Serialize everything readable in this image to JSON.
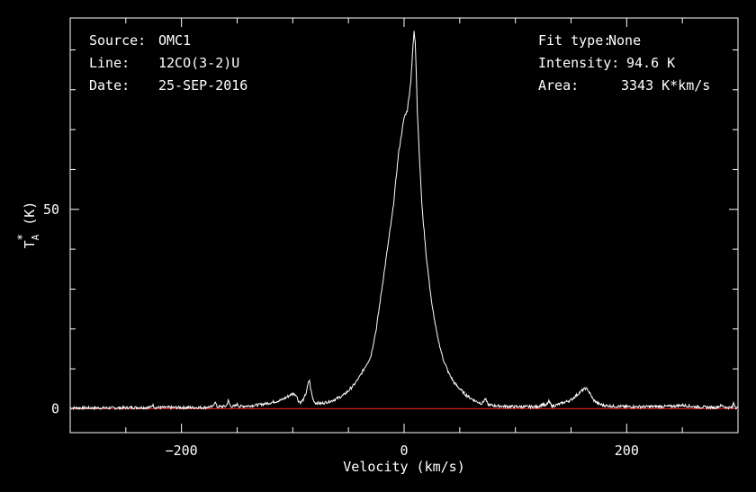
{
  "info": {
    "left": [
      {
        "key": "Source:",
        "value": "OMC1"
      },
      {
        "key": "Line:",
        "value": "12CO(3-2)U"
      },
      {
        "key": "Date:",
        "value": "25-SEP-2016"
      }
    ],
    "right": [
      {
        "key": "Fit type:",
        "value": "None"
      },
      {
        "key": "Intensity:",
        "value": "94.6 K"
      },
      {
        "key": "Area:",
        "value": "3343 K*km/s"
      }
    ]
  },
  "colors": {
    "background": "#000000",
    "axes": "#ffffff",
    "spectrum": "#ffffff",
    "baseline": "#cc2222"
  },
  "chart_data": {
    "type": "line",
    "title": "",
    "xlabel": "Velocity (km/s)",
    "ylabel": "T_A^* (K)",
    "ylabel_parts": {
      "main": "T",
      "sub": "A",
      "sup": "*",
      "unit": " (K)"
    },
    "xlim": [
      -300,
      300
    ],
    "ylim": [
      -6,
      98
    ],
    "xticks": [
      -200,
      0,
      200
    ],
    "yticks": [
      0,
      50
    ],
    "xtick_labels": [
      "−200",
      "0",
      "200"
    ],
    "ytick_labels": [
      "0",
      "50"
    ],
    "grid": false,
    "legend": "none",
    "series": [
      {
        "type": "spectrum",
        "x": [
          -300,
          -260,
          -240,
          -228,
          -226,
          -224,
          -200,
          -180,
          -172,
          -170,
          -168,
          -160,
          -158,
          -156,
          -152,
          -150,
          -148,
          -140,
          -130,
          -120,
          -110,
          -105,
          -100,
          -97,
          -95,
          -93,
          -90,
          -88,
          -86,
          -85,
          -84,
          -82,
          -80,
          -75,
          -70,
          -65,
          -60,
          -55,
          -50,
          -45,
          -40,
          -35,
          -30,
          -25,
          -20,
          -15,
          -10,
          -5,
          0,
          3,
          6,
          8,
          9,
          10,
          11,
          12,
          14,
          16,
          20,
          25,
          30,
          35,
          40,
          45,
          50,
          55,
          60,
          65,
          70,
          73,
          75,
          77,
          80,
          90,
          100,
          110,
          120,
          125,
          127,
          130,
          133,
          135,
          140,
          150,
          155,
          160,
          163,
          165,
          168,
          170,
          175,
          180,
          190,
          200,
          220,
          240,
          250,
          255,
          260,
          270,
          280,
          285,
          290,
          295,
          296,
          298,
          300
        ],
        "y": [
          0.2,
          0.2,
          0.3,
          0.3,
          1.0,
          0.3,
          0.3,
          0.3,
          0.5,
          1.8,
          0.5,
          0.6,
          2.0,
          0.6,
          0.6,
          1.2,
          0.6,
          0.7,
          1.0,
          1.5,
          2.2,
          3.0,
          3.8,
          3.5,
          2.0,
          1.5,
          2.5,
          4.0,
          6.5,
          7.2,
          5.0,
          2.5,
          1.5,
          1.3,
          1.6,
          2.0,
          2.6,
          3.3,
          4.5,
          6.0,
          8.0,
          10.5,
          13.0,
          20.0,
          30.0,
          40.0,
          50.0,
          64.0,
          73.0,
          75.0,
          82.0,
          91.0,
          94.6,
          92.0,
          84.0,
          74.0,
          62.0,
          51.0,
          38.0,
          26.0,
          18.0,
          12.5,
          9.0,
          6.5,
          5.0,
          3.6,
          2.6,
          1.8,
          1.3,
          2.5,
          1.2,
          0.9,
          0.8,
          0.6,
          0.5,
          0.5,
          0.5,
          1.2,
          0.6,
          1.8,
          0.7,
          0.8,
          1.2,
          2.2,
          3.4,
          4.6,
          5.1,
          4.8,
          3.3,
          2.2,
          1.2,
          0.8,
          0.6,
          0.5,
          0.5,
          0.6,
          0.9,
          0.7,
          0.5,
          0.4,
          0.3,
          0.8,
          0.3,
          0.3,
          1.6,
          0.3,
          0.3
        ]
      },
      {
        "type": "baseline",
        "x": [
          -300,
          300
        ],
        "y": [
          0,
          0
        ]
      }
    ]
  }
}
